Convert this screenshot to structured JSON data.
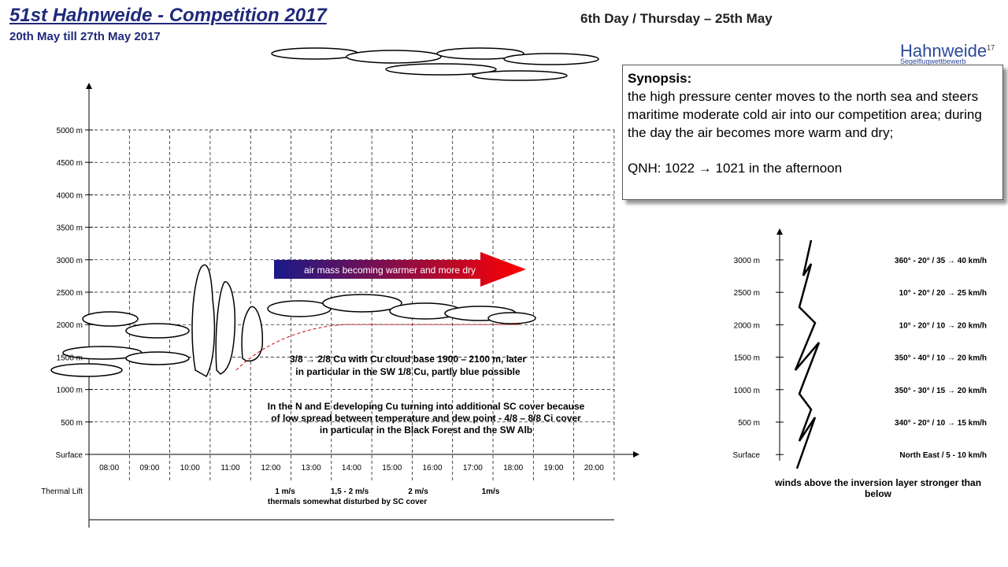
{
  "header": {
    "title": "51st Hahnweide - Competition 2017",
    "dates": "20th May till 27th May 2017",
    "day": "6th Day / Thursday – 25th May"
  },
  "logo": {
    "name": "Hahnweide",
    "year": "17",
    "sub": "Segelflugwettbewerb"
  },
  "synopsis": {
    "title": "Synopsis:",
    "text": "the high pressure center moves to the north sea and steers maritime moderate cold air into our competition area; during the day the air becomes more warm and dry;",
    "qnh": "QNH: 1022 → 1021 in the afternoon"
  },
  "meteogram": {
    "altitudes": [
      "5000 m",
      "4500 m",
      "4000 m",
      "3500 m",
      "3000 m",
      "2500 m",
      "2000 m",
      "1500 m",
      "1000 m",
      "500 m",
      "Surface"
    ],
    "times": [
      "08:00",
      "09:00",
      "10:00",
      "11:00",
      "12:00",
      "13:00",
      "14:00",
      "15:00",
      "16:00",
      "17:00",
      "18:00",
      "19:00",
      "20:00"
    ],
    "row_label": "Thermal Lift",
    "lift": [
      "1 m/s",
      "1,5 - 2 m/s",
      "2 m/s",
      "1m/s"
    ],
    "lift_note": "thermals somewhat disturbed by SC cover",
    "arrow_text": "air mass becoming warmer and more dry",
    "cloud_text": [
      "3/8 → 2/8 Cu with Cu cloud base 1900 – 2100 m, later",
      "in particular in the SW 1/8 Cu, partly blue possible"
    ],
    "sc_text": [
      "In the N and E developing Cu turning into additional SC cover because",
      "of low spread between temperature and dew point - 4/8 – 8/8 Ci cover",
      "in particular in the Black Forest and the SW Alb"
    ]
  },
  "winds": {
    "altitudes": [
      "3000 m",
      "2500 m",
      "2000 m",
      "1500 m",
      "1000 m",
      "500 m",
      "Surface"
    ],
    "values": [
      "360° - 20° / 35 → 40 km/h",
      "10° - 20° / 20 → 25 km/h",
      "10° - 20° / 10 → 20 km/h",
      "350° - 40° / 10 → 20 km/h",
      "350° - 30° / 15 → 20 km/h",
      "340° - 20° / 10 → 15 km/h",
      "North East / 5 - 10 km/h"
    ],
    "note": "winds above the inversion layer stronger than below"
  }
}
